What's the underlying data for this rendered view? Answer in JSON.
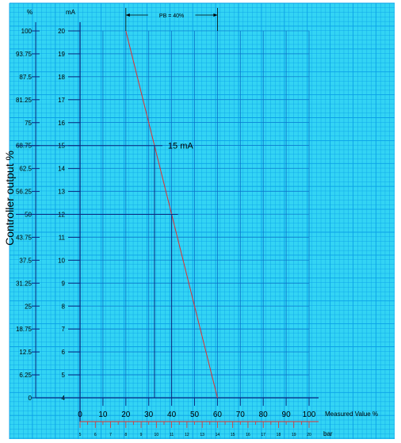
{
  "chart_data": {
    "type": "line",
    "ylabel": "Controller output %",
    "xlabel": "Measured Value %",
    "unit_percent": "%",
    "unit_ma": "mA",
    "unit_bar": "bar",
    "y_percent_ticks": [
      "100",
      "93.75",
      "87.5",
      "81.25",
      "75",
      "68.75",
      "62.5",
      "56.25",
      "50",
      "43.75",
      "37.5",
      "31.25",
      "25",
      "18.75",
      "12.5",
      "6.25",
      "0"
    ],
    "y_ma_ticks": [
      "20",
      "19",
      "18",
      "17",
      "16",
      "15",
      "14",
      "13",
      "12",
      "11",
      "10",
      "9",
      "8",
      "7",
      "6",
      "5",
      "4"
    ],
    "x_percent_ticks": [
      "0",
      "10",
      "20",
      "30",
      "40",
      "50",
      "60",
      "70",
      "80",
      "90",
      "100"
    ],
    "x_bar_ticks": [
      "5",
      "6",
      "7",
      "8",
      "9",
      "10",
      "11",
      "12",
      "13",
      "14",
      "15",
      "16",
      "17",
      "18",
      "19",
      "20"
    ],
    "xlim": [
      0,
      100
    ],
    "ylim_ma": [
      4,
      20
    ],
    "series": [
      {
        "x": [
          20,
          60
        ],
        "y": [
          20,
          4
        ],
        "color": "#e03030"
      }
    ],
    "annotations": {
      "pb_label": "PB = 40%",
      "pb_from": 20,
      "pb_to": 60,
      "point_label": "15 mA",
      "point_x": 32.5,
      "point_y": 15,
      "mid_x": 40,
      "mid_y": 12
    },
    "grid": true,
    "grid_color": "#0aa0e8",
    "background": "#33d4f4",
    "axis_color": "#0a2a80"
  }
}
